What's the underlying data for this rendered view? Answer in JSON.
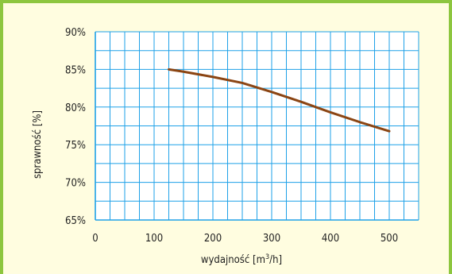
{
  "chart_data": {
    "type": "line",
    "title": "",
    "xlabel_parts": {
      "before": "wydajność [m",
      "sup": "3",
      "after": "/h]"
    },
    "ylabel": "sprawność [%]",
    "xlim": [
      0,
      550
    ],
    "ylim": [
      65,
      90
    ],
    "grid": true,
    "x_ticks": [
      0,
      100,
      200,
      300,
      400,
      500
    ],
    "y_ticks": [
      65,
      70,
      75,
      80,
      85,
      90
    ],
    "x_tick_labels": [
      "0",
      "100",
      "200",
      "300",
      "400",
      "500"
    ],
    "y_tick_labels": [
      "65%",
      "70%",
      "75%",
      "80%",
      "85%",
      "90%"
    ],
    "series": [
      {
        "x": [
          125,
          150,
          200,
          250,
          300,
          350,
          400,
          450,
          500
        ],
        "y": [
          85.0,
          84.7,
          84.0,
          83.2,
          82.0,
          80.7,
          79.3,
          78.0,
          76.8
        ],
        "color": "#8b4513"
      }
    ]
  }
}
